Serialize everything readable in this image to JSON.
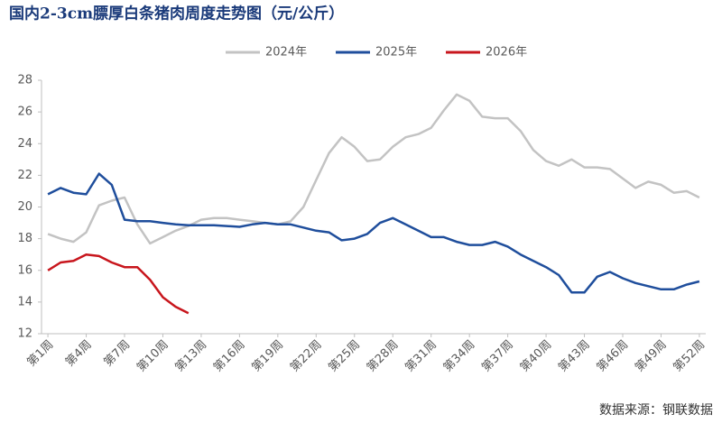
{
  "chart_data": {
    "type": "line",
    "title": "国内2-3cm膘厚白条猪肉周度走势图（元/公斤）",
    "source": "数据来源：钢联数据",
    "categories": [
      "第1周",
      null,
      null,
      "第4周",
      null,
      null,
      "第7周",
      null,
      null,
      "第10周",
      null,
      null,
      "第13周",
      null,
      null,
      "第16周",
      null,
      null,
      "第19周",
      null,
      null,
      "第22周",
      null,
      null,
      "第25周",
      null,
      null,
      "第28周",
      null,
      null,
      "第31周",
      null,
      null,
      "第34周",
      null,
      null,
      "第37周",
      null,
      null,
      "第40周",
      null,
      null,
      "第43周",
      null,
      null,
      "第46周",
      null,
      null,
      "第49周",
      null,
      null,
      "第52周"
    ],
    "series": [
      {
        "name": "2024年",
        "color": "#c3c3c3",
        "values": [
          18.3,
          18.0,
          17.8,
          18.4,
          20.1,
          20.4,
          20.6,
          18.9,
          17.7,
          18.1,
          18.5,
          18.8,
          19.2,
          19.3,
          19.3,
          19.2,
          19.1,
          19.0,
          18.9,
          19.1,
          20.0,
          21.7,
          23.4,
          24.4,
          23.8,
          22.9,
          23.0,
          23.8,
          24.4,
          24.6,
          25.0,
          26.1,
          27.1,
          26.7,
          25.7,
          25.6,
          25.6,
          24.8,
          23.6,
          22.9,
          22.6,
          23.0,
          22.5,
          22.5,
          22.4,
          21.8,
          21.2,
          21.6,
          21.4,
          20.9,
          21.0,
          20.6
        ]
      },
      {
        "name": "2025年",
        "color": "#1f4e9c",
        "values": [
          20.8,
          21.2,
          20.9,
          20.8,
          22.1,
          21.4,
          19.2,
          19.1,
          19.1,
          19.0,
          18.9,
          18.85,
          18.85,
          18.85,
          18.8,
          18.75,
          18.9,
          19.0,
          18.9,
          18.9,
          18.7,
          18.5,
          18.4,
          17.9,
          18.0,
          18.3,
          19.0,
          19.3,
          18.9,
          18.5,
          18.1,
          18.1,
          17.8,
          17.6,
          17.6,
          17.8,
          17.5,
          17.0,
          16.6,
          16.2,
          15.7,
          14.6,
          14.6,
          15.6,
          15.9,
          15.5,
          15.2,
          15.0,
          14.8,
          14.8,
          15.1,
          15.3
        ]
      },
      {
        "name": "2026年",
        "color": "#c8161d",
        "values": [
          16.0,
          16.5,
          16.6,
          17.0,
          16.9,
          16.5,
          16.2,
          16.2,
          15.4,
          14.3,
          13.7,
          13.3,
          null,
          null,
          null,
          null,
          null,
          null,
          null,
          null,
          null,
          null,
          null,
          null,
          null,
          null,
          null,
          null,
          null,
          null,
          null,
          null,
          null,
          null,
          null,
          null,
          null,
          null,
          null,
          null,
          null,
          null,
          null,
          null,
          null,
          null,
          null,
          null,
          null,
          null,
          null,
          null
        ]
      }
    ],
    "ylim": [
      12,
      28
    ],
    "yticks": [
      12,
      14,
      16,
      18,
      20,
      22,
      24,
      26,
      28
    ],
    "grid": false,
    "legend": "top"
  }
}
